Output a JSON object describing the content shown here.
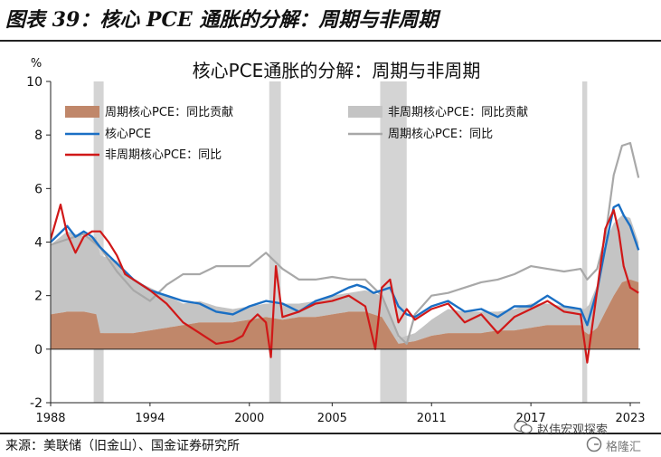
{
  "header": {
    "figure_title": "图表 39：核心 PCE 通胀的分解：周期与非周期"
  },
  "footer": {
    "source": "来源：美联储（旧金山）、国金证券研究所"
  },
  "watermark": {
    "text1": "赵伟宏观探索",
    "text2": "格隆汇"
  },
  "colors": {
    "cyclical_fill": "#c0876a",
    "acyclical_fill": "#c4c4c4",
    "core_pce": "#1a6fc4",
    "acyclical_pce": "#a8a8a8",
    "cyclical_pce": "#d01818",
    "recession": "#d4d4d4"
  },
  "chart_data": {
    "type": "area",
    "title": "核心PCE通胀的分解：周期与非周期",
    "ylabel": "%",
    "xlim": [
      1988,
      2023.6
    ],
    "ylim": [
      -2,
      10
    ],
    "yticks": [
      -2,
      0,
      2,
      4,
      6,
      8,
      10
    ],
    "xtick_labels": [
      "1988",
      "1994",
      "2000",
      "2005",
      "2011",
      "2017",
      "2023"
    ],
    "xtick_values": [
      1988,
      1994,
      2000,
      2005,
      2011,
      2017,
      2023
    ],
    "legend_position": "top",
    "recessions": [
      [
        1990.6,
        1991.2
      ],
      [
        2001.2,
        2001.9
      ],
      [
        2007.9,
        2009.5
      ],
      [
        2020.1,
        2020.4
      ]
    ],
    "series": [
      {
        "name": "周期核心PCE：同比贡献",
        "kind": "area",
        "x": [
          1988,
          1989,
          1990,
          1990.8,
          1991,
          1992,
          1993,
          1994,
          1995,
          1996,
          1997,
          1998,
          1999,
          2000,
          2001,
          2002,
          2003,
          2004,
          2005,
          2006,
          2007,
          2008,
          2008.6,
          2009,
          2010,
          2011,
          2012,
          2013,
          2014,
          2015,
          2016,
          2017,
          2018,
          2019,
          2020,
          2020.4,
          2021,
          2021.5,
          2022,
          2022.5,
          2023,
          2023.5
        ],
        "values": [
          1.3,
          1.4,
          1.4,
          1.3,
          0.6,
          0.6,
          0.6,
          0.7,
          0.8,
          0.9,
          1.0,
          1.0,
          1.0,
          1.1,
          1.2,
          1.1,
          1.2,
          1.2,
          1.3,
          1.4,
          1.4,
          1.2,
          0.6,
          0.2,
          0.3,
          0.5,
          0.6,
          0.6,
          0.6,
          0.7,
          0.7,
          0.8,
          0.9,
          0.9,
          0.9,
          0.5,
          0.8,
          1.4,
          2.0,
          2.5,
          2.6,
          2.5
        ]
      },
      {
        "name": "非周期核心PCE：同比贡献",
        "kind": "area",
        "x": [
          1988,
          1989,
          1990,
          1991,
          1992,
          1993,
          1994,
          1995,
          1996,
          1997,
          1998,
          1999,
          2000,
          2001,
          2002,
          2003,
          2004,
          2005,
          2006,
          2007,
          2008,
          2009,
          2010,
          2011,
          2012,
          2013,
          2014,
          2015,
          2016,
          2017,
          2018,
          2019,
          2020,
          2021,
          2021.5,
          2022,
          2022.5,
          2023,
          2023.5
        ],
        "values": [
          2.6,
          3.0,
          2.8,
          2.9,
          2.7,
          2.0,
          1.6,
          1.2,
          0.8,
          0.8,
          0.6,
          0.5,
          0.5,
          0.5,
          0.6,
          0.5,
          0.6,
          0.7,
          0.7,
          0.8,
          0.8,
          0.2,
          0.3,
          0.6,
          0.9,
          0.8,
          0.8,
          0.7,
          0.8,
          0.9,
          0.8,
          0.7,
          0.6,
          1.6,
          2.6,
          2.7,
          2.5,
          2.3,
          1.5
        ]
      },
      {
        "name": "核心PCE",
        "kind": "line",
        "x": [
          1988,
          1988.5,
          1989,
          1989.5,
          1990,
          1990.5,
          1991,
          1991.5,
          1992,
          1992.5,
          1993,
          1993.5,
          1994,
          1995,
          1996,
          1997,
          1998,
          1999,
          2000,
          2001,
          2002,
          2003,
          2004,
          2005,
          2006,
          2006.5,
          2007,
          2007.5,
          2008,
          2008.5,
          2009,
          2009.5,
          2010,
          2011,
          2012,
          2013,
          2014,
          2015,
          2016,
          2017,
          2018,
          2019,
          2020,
          2020.4,
          2021,
          2021.5,
          2022,
          2022.3,
          2022.6,
          2023,
          2023.5
        ],
        "values": [
          4.0,
          4.3,
          4.6,
          4.2,
          4.4,
          4.2,
          3.8,
          3.5,
          3.2,
          2.9,
          2.6,
          2.4,
          2.2,
          2.0,
          1.8,
          1.7,
          1.4,
          1.3,
          1.6,
          1.8,
          1.7,
          1.4,
          1.8,
          2.0,
          2.3,
          2.4,
          2.3,
          2.1,
          2.2,
          2.3,
          1.6,
          1.3,
          1.2,
          1.6,
          1.8,
          1.4,
          1.5,
          1.2,
          1.6,
          1.6,
          2.0,
          1.6,
          1.5,
          0.9,
          2.2,
          3.8,
          5.3,
          5.4,
          5.0,
          4.6,
          3.7
        ]
      },
      {
        "name": "周期核心PCE：同比",
        "kind": "line",
        "x": [
          1988,
          1989,
          1990,
          1991,
          1992,
          1993,
          1994,
          1995,
          1996,
          1997,
          1998,
          1999,
          2000,
          2001,
          2002,
          2003,
          2004,
          2005,
          2006,
          2007,
          2008,
          2009,
          2009.5,
          2010,
          2011,
          2012,
          2013,
          2014,
          2015,
          2016,
          2017,
          2018,
          2019,
          2020,
          2020.4,
          2021,
          2021.5,
          2022,
          2022.5,
          2023,
          2023.5
        ],
        "values": [
          3.9,
          4.1,
          4.3,
          3.8,
          2.9,
          2.2,
          1.8,
          2.4,
          2.8,
          2.8,
          3.1,
          3.1,
          3.1,
          3.6,
          3.0,
          2.6,
          2.6,
          2.7,
          2.6,
          2.6,
          2.0,
          0.5,
          0.2,
          1.3,
          2.0,
          2.1,
          2.3,
          2.5,
          2.6,
          2.8,
          3.1,
          3.0,
          2.9,
          3.0,
          2.6,
          3.0,
          4.2,
          6.5,
          7.6,
          7.7,
          6.4
        ]
      },
      {
        "name": "非周期核心PCE：同比",
        "kind": "line",
        "x": [
          1988,
          1988.6,
          1989,
          1989.5,
          1990,
          1990.5,
          1991,
          1991.5,
          1992,
          1992.5,
          1993,
          1993.5,
          1994,
          1995,
          1996,
          1997,
          1998,
          1999,
          1999.6,
          2000,
          2000.5,
          2001,
          2001.3,
          2001.6,
          2002,
          2003,
          2004,
          2005,
          2006,
          2007,
          2007.6,
          2008,
          2008.5,
          2009,
          2009.5,
          2010,
          2011,
          2012,
          2013,
          2014,
          2015,
          2016,
          2017,
          2018,
          2019,
          2020,
          2020.4,
          2021,
          2021.5,
          2022,
          2022.3,
          2022.6,
          2023,
          2023.5
        ],
        "values": [
          4.1,
          5.4,
          4.3,
          3.6,
          4.2,
          4.4,
          4.4,
          4.0,
          3.5,
          2.8,
          2.6,
          2.4,
          2.2,
          1.7,
          1.0,
          0.6,
          0.2,
          0.3,
          0.5,
          1.0,
          1.3,
          1.0,
          -0.3,
          3.1,
          1.2,
          1.4,
          1.7,
          1.8,
          2.0,
          1.6,
          0.0,
          2.3,
          2.6,
          1.0,
          1.5,
          1.1,
          1.5,
          1.7,
          1.0,
          1.3,
          0.6,
          1.2,
          1.5,
          1.8,
          1.4,
          1.3,
          -0.5,
          2.2,
          4.5,
          5.2,
          4.4,
          3.1,
          2.3,
          2.1
        ]
      }
    ]
  }
}
